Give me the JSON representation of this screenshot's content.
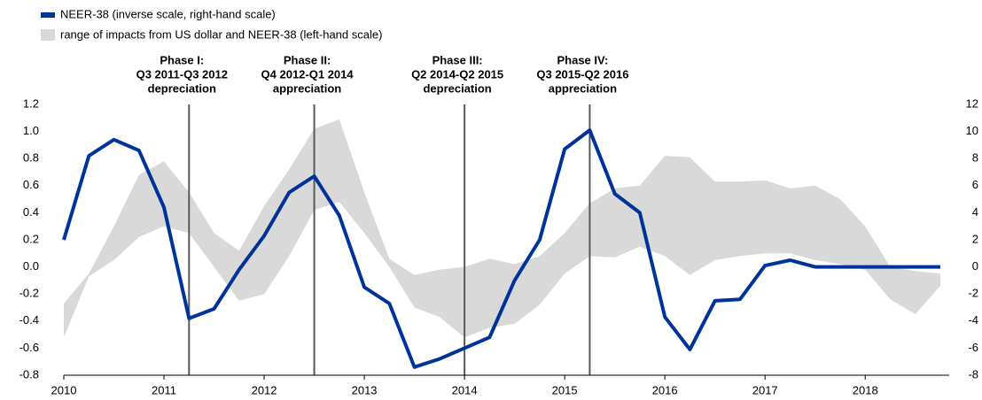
{
  "chart_data": {
    "type": "line",
    "categories": [
      "2010",
      null,
      null,
      null,
      "2011",
      null,
      null,
      null,
      "2012",
      null,
      null,
      null,
      "2013",
      null,
      null,
      null,
      "2014",
      null,
      null,
      null,
      "2015",
      null,
      null,
      null,
      "2016",
      null,
      null,
      null,
      "2017",
      null,
      null,
      null,
      "2018",
      null,
      null,
      null
    ],
    "series": [
      {
        "name": "range of impacts from US dollar and NEER-38 (left-hand scale)",
        "color": "#d9d9d9",
        "type": "range",
        "axis": "y",
        "upper": [
          -0.27,
          -0.05,
          0.3,
          0.68,
          0.78,
          0.55,
          0.25,
          0.12,
          0.45,
          0.72,
          1.02,
          1.09,
          0.55,
          0.06,
          -0.06,
          -0.02,
          0.0,
          0.06,
          0.02,
          0.08,
          0.25,
          0.47,
          0.58,
          0.6,
          0.82,
          0.81,
          0.63,
          0.63,
          0.64,
          0.58,
          0.6,
          0.5,
          0.3,
          0.0,
          -0.03,
          -0.05
        ],
        "lower": [
          -0.52,
          -0.07,
          0.05,
          0.22,
          0.3,
          0.25,
          0.0,
          -0.25,
          -0.2,
          0.08,
          0.42,
          0.48,
          0.25,
          0.0,
          -0.3,
          -0.37,
          -0.52,
          -0.45,
          -0.42,
          -0.28,
          -0.05,
          0.08,
          0.07,
          0.15,
          0.08,
          -0.06,
          0.05,
          0.08,
          0.1,
          0.1,
          0.05,
          0.02,
          -0.02,
          -0.24,
          -0.35,
          -0.14
        ]
      },
      {
        "name": "NEER-38 (inverse scale, right-hand scale)",
        "color": "#003399",
        "axis": "y2",
        "values": [
          2,
          8.2,
          9.4,
          8.6,
          4.4,
          -3.8,
          -3.1,
          -0.2,
          2.3,
          5.5,
          6.7,
          3.8,
          -1.5,
          -2.7,
          -7.4,
          -6.8,
          -6.0,
          -5.2,
          -1.0,
          2.0,
          8.7,
          10.1,
          5.4,
          4.0,
          -3.7,
          -6.1,
          -2.5,
          -2.4,
          0.1,
          0.5,
          0,
          0,
          0,
          0,
          0,
          0
        ]
      }
    ],
    "ylim": [
      -0.8,
      1.2
    ],
    "yticks": [
      -0.8,
      -0.6,
      -0.4,
      -0.2,
      {
        "value": 0,
        "label": "0.0"
      },
      0.2,
      0.4,
      0.6,
      0.8,
      {
        "value": 1,
        "label": "1.0"
      },
      1.2
    ],
    "y2lim": [
      -8,
      12
    ],
    "y2ticks": [
      -8,
      -6,
      -4,
      -2,
      0,
      2,
      4,
      6,
      8,
      10,
      12
    ],
    "annotations": [
      [
        "Phase I:",
        "Q3 2011-Q3 2012",
        "depreciation"
      ],
      [
        "Phase II:",
        "Q4 2012-Q1 2014",
        "appreciation"
      ],
      [
        "Phase III:",
        "Q2 2014-Q2 2015",
        "depreciation"
      ],
      [
        "Phase IV:",
        "Q3 2015-Q2 2016",
        "appreciation"
      ]
    ]
  }
}
